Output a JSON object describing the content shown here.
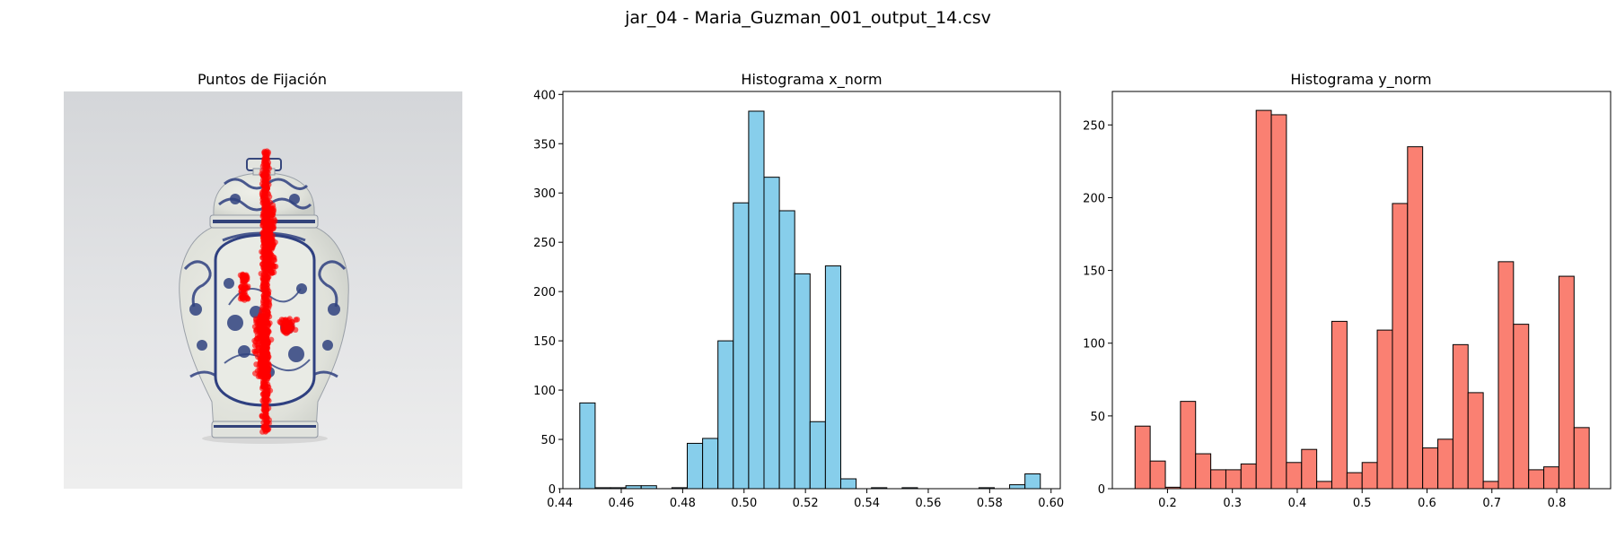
{
  "figure_title": "jar_04 - Maria_Guzman_001_output_14.csv",
  "image_panel": {
    "title": "Puntos de Fijación",
    "point_color": "#ff0000"
  },
  "colors": {
    "x_hist_fill": "#87ceeb",
    "y_hist_fill": "#fa8072",
    "edge": "#000000"
  },
  "chart_data": [
    {
      "type": "bar",
      "title": "Histograma x_norm",
      "xlabel": "",
      "ylabel": "",
      "xlim": [
        0.441,
        0.603
      ],
      "ylim": [
        0,
        403
      ],
      "xticks": [
        0.44,
        0.46,
        0.48,
        0.5,
        0.52,
        0.54,
        0.56,
        0.58,
        0.6
      ],
      "xtick_labels": [
        "0.44",
        "0.46",
        "0.48",
        "0.50",
        "0.52",
        "0.54",
        "0.56",
        "0.58",
        "0.60"
      ],
      "yticks": [
        0,
        50,
        100,
        150,
        200,
        250,
        300,
        350,
        400
      ],
      "bin_edges": [
        0.4465,
        0.4515,
        0.4565,
        0.4615,
        0.4665,
        0.4715,
        0.4765,
        0.4815,
        0.4865,
        0.4915,
        0.4965,
        0.5015,
        0.5065,
        0.5115,
        0.5165,
        0.5215,
        0.5265,
        0.5315,
        0.5365,
        0.5415,
        0.5465,
        0.5515,
        0.5565,
        0.5615,
        0.5665,
        0.5715,
        0.5765,
        0.5815,
        0.5865,
        0.5915,
        0.5965
      ],
      "values": [
        87,
        1,
        1,
        3,
        3,
        0,
        1,
        46,
        51,
        150,
        290,
        383,
        316,
        282,
        218,
        68,
        226,
        10,
        0,
        1,
        0,
        1,
        0,
        0,
        0,
        0,
        1,
        0,
        4,
        15
      ]
    },
    {
      "type": "bar",
      "title": "Histograma y_norm",
      "xlabel": "",
      "ylabel": "",
      "xlim": [
        0.115,
        0.883
      ],
      "ylim": [
        0,
        273
      ],
      "xticks": [
        0.2,
        0.3,
        0.4,
        0.5,
        0.6,
        0.7,
        0.8
      ],
      "xtick_labels": [
        "0.2",
        "0.3",
        "0.4",
        "0.5",
        "0.6",
        "0.7",
        "0.8"
      ],
      "yticks": [
        0,
        50,
        100,
        150,
        200,
        250
      ],
      "bin_edges": [
        0.15,
        0.1733,
        0.1967,
        0.22,
        0.2433,
        0.2667,
        0.29,
        0.3133,
        0.3367,
        0.36,
        0.3833,
        0.4067,
        0.43,
        0.4533,
        0.4767,
        0.5,
        0.5233,
        0.5467,
        0.57,
        0.5933,
        0.6167,
        0.64,
        0.6633,
        0.6867,
        0.71,
        0.7333,
        0.7567,
        0.78,
        0.8033,
        0.8267,
        0.85
      ],
      "values": [
        43,
        19,
        1,
        60,
        24,
        13,
        13,
        17,
        260,
        257,
        18,
        27,
        5,
        115,
        11,
        18,
        109,
        196,
        235,
        28,
        34,
        99,
        66,
        5,
        156,
        113,
        13,
        15,
        146,
        42
      ]
    }
  ]
}
